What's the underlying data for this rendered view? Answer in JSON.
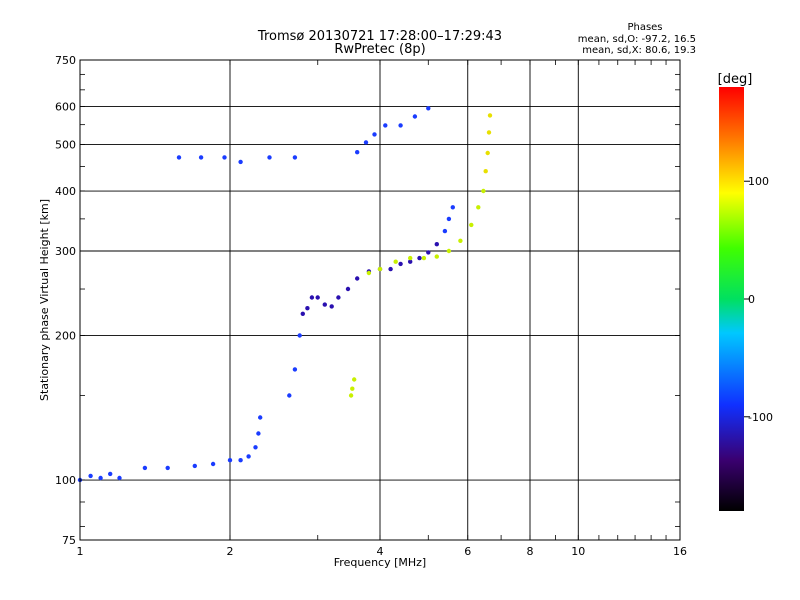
{
  "chart_data": {
    "type": "scatter",
    "title": "Tromsø 20130721 17:28:00–17:29:43",
    "subtitle": "RwPretec (8p)",
    "xlabel": "Frequency [MHz]",
    "ylabel": "Stationary phase Virtual Height [km]",
    "x_scale": "log",
    "y_scale": "log",
    "xlim": [
      1,
      16
    ],
    "ylim": [
      75,
      750
    ],
    "x_ticks": [
      "1",
      "2",
      "4",
      "6",
      "8",
      "10",
      "16"
    ],
    "y_ticks": [
      "75",
      "100",
      "200",
      "300",
      "400",
      "500",
      "600",
      "750"
    ],
    "grid": true,
    "stats": {
      "heading": "Phases",
      "line_O": "mean, sd,O: -97.2, 16.5",
      "line_X": "mean, sd,X: 80.6, 19.3"
    },
    "colorbar": {
      "label": "[deg]",
      "ticks": [
        "100",
        "0",
        "-100"
      ],
      "tick_values": [
        100,
        0,
        -100
      ],
      "range": [
        -180,
        180
      ],
      "colormap": "rainbow"
    },
    "phase_colors": {
      "O_mode": "#1a3cff",
      "O_mode_low": "#2a10b0",
      "X_mode": "#c8f000",
      "X_mode_high": "#e8e000"
    },
    "series": [
      {
        "mode": "O",
        "phase_deg": -97.2,
        "points": [
          [
            1.0,
            100
          ],
          [
            1.05,
            102
          ],
          [
            1.1,
            101
          ],
          [
            1.15,
            103
          ],
          [
            1.2,
            101
          ],
          [
            1.35,
            106
          ],
          [
            1.5,
            106
          ],
          [
            1.7,
            107
          ],
          [
            1.85,
            108
          ],
          [
            2.0,
            110
          ],
          [
            2.1,
            110
          ],
          [
            2.18,
            112
          ],
          [
            2.25,
            117
          ],
          [
            2.28,
            125
          ],
          [
            2.3,
            135
          ],
          [
            2.63,
            150
          ],
          [
            2.7,
            170
          ],
          [
            2.76,
            200
          ],
          [
            2.8,
            222
          ],
          [
            2.86,
            228
          ],
          [
            2.92,
            240
          ],
          [
            3.0,
            240
          ],
          [
            3.1,
            232
          ],
          [
            3.2,
            230
          ],
          [
            3.3,
            240
          ],
          [
            3.45,
            250
          ],
          [
            3.6,
            263
          ],
          [
            3.8,
            272
          ],
          [
            4.0,
            275
          ],
          [
            4.2,
            275
          ],
          [
            4.4,
            282
          ],
          [
            4.6,
            285
          ],
          [
            4.8,
            290
          ],
          [
            5.0,
            298
          ],
          [
            5.2,
            310
          ],
          [
            5.4,
            330
          ],
          [
            5.5,
            350
          ],
          [
            5.6,
            370
          ],
          [
            3.6,
            482
          ],
          [
            3.75,
            505
          ],
          [
            3.9,
            525
          ],
          [
            4.1,
            548
          ],
          [
            4.4,
            548
          ],
          [
            4.7,
            572
          ],
          [
            5.0,
            595
          ],
          [
            1.58,
            470
          ],
          [
            1.75,
            470
          ],
          [
            1.95,
            470
          ],
          [
            2.1,
            460
          ],
          [
            2.4,
            470
          ],
          [
            2.7,
            470
          ]
        ]
      },
      {
        "mode": "X",
        "phase_deg": 80.6,
        "points": [
          [
            3.8,
            270
          ],
          [
            4.0,
            275
          ],
          [
            4.3,
            285
          ],
          [
            4.6,
            290
          ],
          [
            4.9,
            290
          ],
          [
            5.2,
            292
          ],
          [
            5.5,
            300
          ],
          [
            5.8,
            315
          ],
          [
            6.1,
            340
          ],
          [
            6.3,
            370
          ],
          [
            6.45,
            400
          ],
          [
            6.52,
            440
          ],
          [
            6.58,
            480
          ],
          [
            6.62,
            530
          ],
          [
            6.65,
            575
          ],
          [
            3.5,
            150
          ],
          [
            3.52,
            155
          ],
          [
            3.55,
            162
          ]
        ]
      }
    ]
  }
}
